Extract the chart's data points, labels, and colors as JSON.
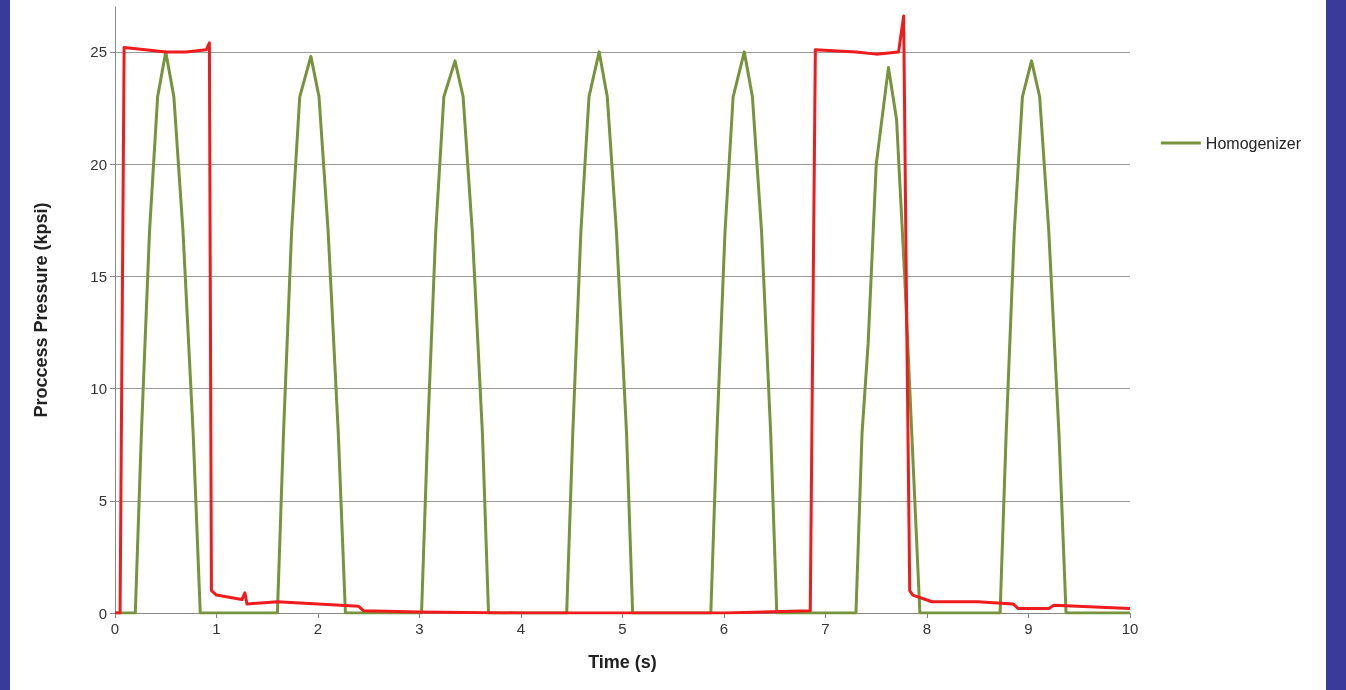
{
  "chart_data": {
    "type": "line",
    "xlabel": "Time (s)",
    "ylabel": "Proccess Pressure (kpsi)",
    "xlim": [
      0,
      10
    ],
    "xticks": [
      0,
      1,
      2,
      3,
      4,
      5,
      6,
      7,
      8,
      9,
      10
    ],
    "ylim": [
      0,
      27
    ],
    "yticks": [
      0,
      5,
      10,
      15,
      20,
      25
    ],
    "grid": "y",
    "legend": "right",
    "marker": "none",
    "line_style": "solid",
    "series": [
      {
        "name": "Homogenizer",
        "color": "#77933c",
        "x": [
          0,
          0.2,
          0.26,
          0.34,
          0.42,
          0.5,
          0.58,
          0.67,
          0.77,
          0.84,
          1.6,
          1.66,
          1.74,
          1.82,
          1.93,
          2.01,
          2.1,
          2.2,
          2.27,
          3.02,
          3.08,
          3.16,
          3.24,
          3.35,
          3.43,
          3.52,
          3.62,
          3.68,
          4.45,
          4.51,
          4.59,
          4.67,
          4.77,
          4.85,
          4.94,
          5.04,
          5.1,
          5.87,
          5.93,
          6.01,
          6.09,
          6.2,
          6.28,
          6.37,
          6.46,
          6.52,
          7.3,
          7.36,
          7.42,
          7.5,
          7.62,
          7.7,
          7.78,
          7.87,
          7.93,
          8.72,
          8.78,
          8.86,
          8.94,
          9.03,
          9.11,
          9.2,
          9.3,
          9.37,
          10
        ],
        "values": [
          0,
          0,
          8,
          17,
          23,
          25,
          23,
          17,
          8,
          0,
          0,
          8,
          17,
          23,
          24.8,
          23,
          17,
          8,
          0,
          0,
          8,
          17,
          23,
          24.6,
          23,
          17,
          8,
          0,
          0,
          8,
          17,
          23,
          25,
          23,
          17,
          8,
          0,
          0,
          8,
          17,
          23,
          25,
          23,
          17,
          8,
          0,
          0,
          8,
          12,
          20,
          24.3,
          22,
          15,
          6,
          0,
          0,
          8,
          17,
          23,
          24.6,
          23,
          17,
          8,
          0,
          0
        ]
      },
      {
        "color": "#ee1c1c",
        "x": [
          0,
          0.05,
          0.09,
          0.3,
          0.5,
          0.7,
          0.9,
          0.93,
          0.95,
          1.0,
          1.25,
          1.28,
          1.3,
          1.6,
          2.0,
          2.4,
          2.45,
          3,
          4,
          6,
          6.85,
          6.9,
          7.3,
          7.5,
          7.72,
          7.77,
          7.8,
          7.83,
          7.86,
          8.05,
          8.5,
          8.85,
          8.9,
          9.2,
          9.25,
          10
        ],
        "values": [
          0,
          0,
          25.2,
          25.1,
          25,
          25,
          25.1,
          25.4,
          1,
          0.8,
          0.6,
          0.9,
          0.4,
          0.5,
          0.4,
          0.3,
          0.1,
          0.05,
          0,
          0,
          0.1,
          25.1,
          25,
          24.9,
          25,
          26.6,
          13,
          1,
          0.8,
          0.5,
          0.5,
          0.4,
          0.2,
          0.2,
          0.35,
          0.2
        ]
      }
    ]
  }
}
